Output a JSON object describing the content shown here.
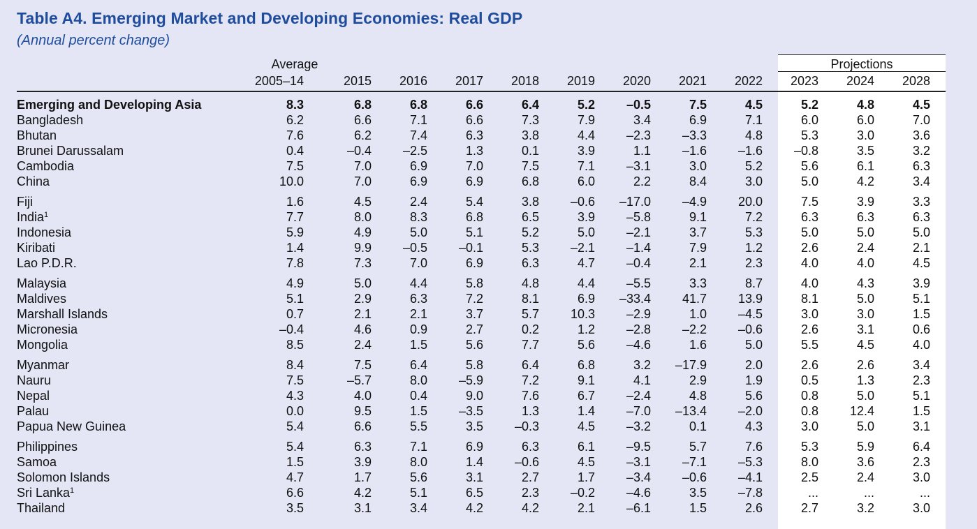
{
  "title": "Table A4. Emerging Market and Developing Economies: Real GDP",
  "subtitle": "(Annual percent change)",
  "header": {
    "average_label": "Average",
    "projections_label": "Projections",
    "columns": [
      "2005–14",
      "2015",
      "2016",
      "2017",
      "2018",
      "2019",
      "2020",
      "2021",
      "2022",
      "2023",
      "2024",
      "2028"
    ]
  },
  "rows": [
    {
      "name": "Emerging and Developing Asia",
      "sup": "",
      "values": [
        "8.3",
        "6.8",
        "6.8",
        "6.6",
        "6.4",
        "5.2",
        "–0.5",
        "7.5",
        "4.5",
        "5.2",
        "4.8",
        "4.5"
      ]
    },
    {
      "name": "Bangladesh",
      "sup": "",
      "values": [
        "6.2",
        "6.6",
        "7.1",
        "6.6",
        "7.3",
        "7.9",
        "3.4",
        "6.9",
        "7.1",
        "6.0",
        "6.0",
        "7.0"
      ]
    },
    {
      "name": "Bhutan",
      "sup": "",
      "values": [
        "7.6",
        "6.2",
        "7.4",
        "6.3",
        "3.8",
        "4.4",
        "–2.3",
        "–3.3",
        "4.8",
        "5.3",
        "3.0",
        "3.6"
      ]
    },
    {
      "name": "Brunei Darussalam",
      "sup": "",
      "values": [
        "0.4",
        "–0.4",
        "–2.5",
        "1.3",
        "0.1",
        "3.9",
        "1.1",
        "–1.6",
        "–1.6",
        "–0.8",
        "3.5",
        "3.2"
      ]
    },
    {
      "name": "Cambodia",
      "sup": "",
      "values": [
        "7.5",
        "7.0",
        "6.9",
        "7.0",
        "7.5",
        "7.1",
        "–3.1",
        "3.0",
        "5.2",
        "5.6",
        "6.1",
        "6.3"
      ]
    },
    {
      "name": "China",
      "sup": "",
      "values": [
        "10.0",
        "7.0",
        "6.9",
        "6.9",
        "6.8",
        "6.0",
        "2.2",
        "8.4",
        "3.0",
        "5.0",
        "4.2",
        "3.4"
      ]
    },
    {
      "name": "Fiji",
      "sup": "",
      "values": [
        "1.6",
        "4.5",
        "2.4",
        "5.4",
        "3.8",
        "–0.6",
        "–17.0",
        "–4.9",
        "20.0",
        "7.5",
        "3.9",
        "3.3"
      ]
    },
    {
      "name": "India",
      "sup": "1",
      "values": [
        "7.7",
        "8.0",
        "8.3",
        "6.8",
        "6.5",
        "3.9",
        "–5.8",
        "9.1",
        "7.2",
        "6.3",
        "6.3",
        "6.3"
      ]
    },
    {
      "name": "Indonesia",
      "sup": "",
      "values": [
        "5.9",
        "4.9",
        "5.0",
        "5.1",
        "5.2",
        "5.0",
        "–2.1",
        "3.7",
        "5.3",
        "5.0",
        "5.0",
        "5.0"
      ]
    },
    {
      "name": "Kiribati",
      "sup": "",
      "values": [
        "1.4",
        "9.9",
        "–0.5",
        "–0.1",
        "5.3",
        "–2.1",
        "–1.4",
        "7.9",
        "1.2",
        "2.6",
        "2.4",
        "2.1"
      ]
    },
    {
      "name": "Lao P.D.R.",
      "sup": "",
      "values": [
        "7.8",
        "7.3",
        "7.0",
        "6.9",
        "6.3",
        "4.7",
        "–0.4",
        "2.1",
        "2.3",
        "4.0",
        "4.0",
        "4.5"
      ]
    },
    {
      "name": "Malaysia",
      "sup": "",
      "values": [
        "4.9",
        "5.0",
        "4.4",
        "5.8",
        "4.8",
        "4.4",
        "–5.5",
        "3.3",
        "8.7",
        "4.0",
        "4.3",
        "3.9"
      ]
    },
    {
      "name": "Maldives",
      "sup": "",
      "values": [
        "5.1",
        "2.9",
        "6.3",
        "7.2",
        "8.1",
        "6.9",
        "–33.4",
        "41.7",
        "13.9",
        "8.1",
        "5.0",
        "5.1"
      ]
    },
    {
      "name": "Marshall Islands",
      "sup": "",
      "values": [
        "0.7",
        "2.1",
        "2.1",
        "3.7",
        "5.7",
        "10.3",
        "–2.9",
        "1.0",
        "–4.5",
        "3.0",
        "3.0",
        "1.5"
      ]
    },
    {
      "name": "Micronesia",
      "sup": "",
      "values": [
        "–0.4",
        "4.6",
        "0.9",
        "2.7",
        "0.2",
        "1.2",
        "–2.8",
        "–2.2",
        "–0.6",
        "2.6",
        "3.1",
        "0.6"
      ]
    },
    {
      "name": "Mongolia",
      "sup": "",
      "values": [
        "8.5",
        "2.4",
        "1.5",
        "5.6",
        "7.7",
        "5.6",
        "–4.6",
        "1.6",
        "5.0",
        "5.5",
        "4.5",
        "4.0"
      ]
    },
    {
      "name": "Myanmar",
      "sup": "",
      "values": [
        "8.4",
        "7.5",
        "6.4",
        "5.8",
        "6.4",
        "6.8",
        "3.2",
        "–17.9",
        "2.0",
        "2.6",
        "2.6",
        "3.4"
      ]
    },
    {
      "name": "Nauru",
      "sup": "",
      "values": [
        "7.5",
        "–5.7",
        "8.0",
        "–5.9",
        "7.2",
        "9.1",
        "4.1",
        "2.9",
        "1.9",
        "0.5",
        "1.3",
        "2.3"
      ]
    },
    {
      "name": "Nepal",
      "sup": "",
      "values": [
        "4.3",
        "4.0",
        "0.4",
        "9.0",
        "7.6",
        "6.7",
        "–2.4",
        "4.8",
        "5.6",
        "0.8",
        "5.0",
        "5.1"
      ]
    },
    {
      "name": "Palau",
      "sup": "",
      "values": [
        "0.0",
        "9.5",
        "1.5",
        "–3.5",
        "1.3",
        "1.4",
        "–7.0",
        "–13.4",
        "–2.0",
        "0.8",
        "12.4",
        "1.5"
      ]
    },
    {
      "name": "Papua New Guinea",
      "sup": "",
      "values": [
        "5.4",
        "6.6",
        "5.5",
        "3.5",
        "–0.3",
        "4.5",
        "–3.2",
        "0.1",
        "4.3",
        "3.0",
        "5.0",
        "3.1"
      ]
    },
    {
      "name": "Philippines",
      "sup": "",
      "values": [
        "5.4",
        "6.3",
        "7.1",
        "6.9",
        "6.3",
        "6.1",
        "–9.5",
        "5.7",
        "7.6",
        "5.3",
        "5.9",
        "6.4"
      ]
    },
    {
      "name": "Samoa",
      "sup": "",
      "values": [
        "1.5",
        "3.9",
        "8.0",
        "1.4",
        "–0.6",
        "4.5",
        "–3.1",
        "–7.1",
        "–5.3",
        "8.0",
        "3.6",
        "2.3"
      ]
    },
    {
      "name": "Solomon Islands",
      "sup": "",
      "values": [
        "4.7",
        "1.7",
        "5.6",
        "3.1",
        "2.7",
        "1.7",
        "–3.4",
        "–0.6",
        "–4.1",
        "2.5",
        "2.4",
        "3.0"
      ]
    },
    {
      "name": "Sri Lanka",
      "sup": "1",
      "values": [
        "6.6",
        "4.2",
        "5.1",
        "6.5",
        "2.3",
        "–0.2",
        "–4.6",
        "3.5",
        "–7.8",
        "...",
        "...",
        "..."
      ]
    },
    {
      "name": "Thailand",
      "sup": "",
      "values": [
        "3.5",
        "3.1",
        "3.4",
        "4.2",
        "4.2",
        "2.1",
        "–6.1",
        "1.5",
        "2.6",
        "2.7",
        "3.2",
        "3.0"
      ]
    }
  ]
}
